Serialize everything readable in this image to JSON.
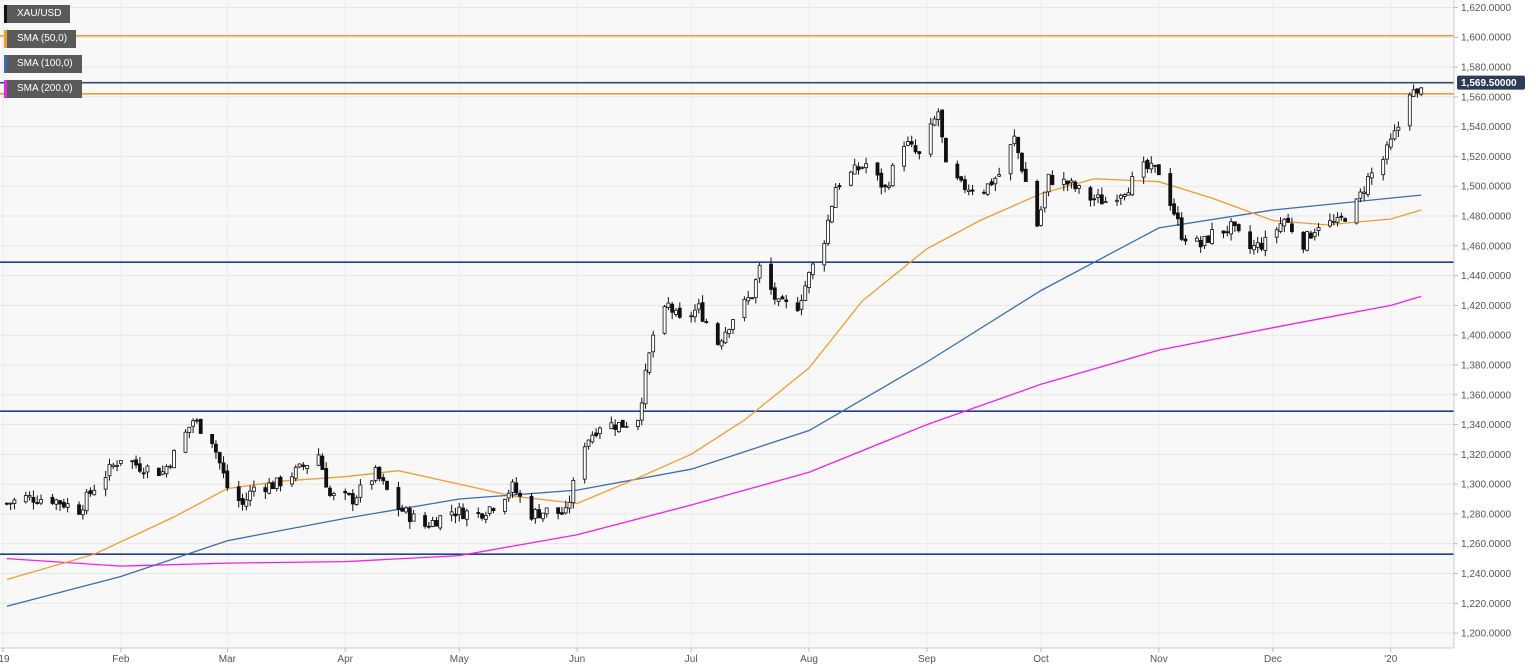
{
  "chart_data": {
    "type": "candlestick",
    "symbol": "XAU/USD",
    "legend": [
      {
        "label": "XAU/USD",
        "color": "#111111"
      },
      {
        "label": "SMA (50,0)",
        "color": "#f39c2f"
      },
      {
        "label": "SMA (100,0)",
        "color": "#3a6db5"
      },
      {
        "label": "SMA (200,0)",
        "color": "#ee22ee"
      }
    ],
    "last_price_label": "1,569.50000",
    "last_price": 1569.5,
    "ylim": [
      1190,
      1625
    ],
    "y_ticks": [
      1200,
      1220,
      1240,
      1260,
      1280,
      1300,
      1320,
      1340,
      1360,
      1380,
      1400,
      1420,
      1440,
      1460,
      1480,
      1500,
      1520,
      1540,
      1560,
      1580,
      1600,
      1620
    ],
    "y_tick_labels": [
      "1,200.0000",
      "1,220.0000",
      "1,240.0000",
      "1,260.0000",
      "1,280.0000",
      "1,300.0000",
      "1,320.0000",
      "1,340.0000",
      "1,360.0000",
      "1,380.0000",
      "1,400.0000",
      "1,420.0000",
      "1,440.0000",
      "1,460.0000",
      "1,480.0000",
      "1,500.0000",
      "1,520.0000",
      "1,540.0000",
      "1,560.0000",
      "1,580.0000",
      "1,600.0000",
      "1,620.0000"
    ],
    "x_range": [
      "2019-01-01",
      "2020-01-10"
    ],
    "x_ticks": [
      {
        "date": "2019-01-01",
        "label": "'19"
      },
      {
        "date": "2019-02-01",
        "label": "Feb"
      },
      {
        "date": "2019-03-01",
        "label": "Mar"
      },
      {
        "date": "2019-04-01",
        "label": "Apr"
      },
      {
        "date": "2019-05-01",
        "label": "May"
      },
      {
        "date": "2019-06-01",
        "label": "Jun"
      },
      {
        "date": "2019-07-01",
        "label": "Jul"
      },
      {
        "date": "2019-08-01",
        "label": "Aug"
      },
      {
        "date": "2019-09-01",
        "label": "Sep"
      },
      {
        "date": "2019-10-01",
        "label": "Oct"
      },
      {
        "date": "2019-11-01",
        "label": "Nov"
      },
      {
        "date": "2019-12-01",
        "label": "Dec"
      },
      {
        "date": "2020-01-01",
        "label": "'20"
      }
    ],
    "horizontal_levels": [
      {
        "value": 1601,
        "color": "#f39c2f"
      },
      {
        "value": 1562,
        "color": "#f39c2f"
      },
      {
        "value": 1569.5,
        "color": "#3a4a6a"
      },
      {
        "value": 1449,
        "color": "#1f3f8f"
      },
      {
        "value": 1349,
        "color": "#1f3f8f"
      },
      {
        "value": 1253,
        "color": "#1f3f8f"
      }
    ],
    "closes": [
      [
        "2019-01-02",
        1287
      ],
      [
        "2019-01-07",
        1291
      ],
      [
        "2019-01-14",
        1290
      ],
      [
        "2019-01-21",
        1283
      ],
      [
        "2019-01-25",
        1298
      ],
      [
        "2019-02-01",
        1318
      ],
      [
        "2019-02-06",
        1312
      ],
      [
        "2019-02-12",
        1308
      ],
      [
        "2019-02-15",
        1320
      ],
      [
        "2019-02-20",
        1343
      ],
      [
        "2019-02-25",
        1330
      ],
      [
        "2019-03-01",
        1298
      ],
      [
        "2019-03-05",
        1286
      ],
      [
        "2019-03-08",
        1298
      ],
      [
        "2019-03-14",
        1300
      ],
      [
        "2019-03-20",
        1310
      ],
      [
        "2019-03-25",
        1320
      ],
      [
        "2019-03-28",
        1292
      ],
      [
        "2019-04-03",
        1290
      ],
      [
        "2019-04-09",
        1307
      ],
      [
        "2019-04-15",
        1284
      ],
      [
        "2019-04-22",
        1272
      ],
      [
        "2019-04-29",
        1282
      ],
      [
        "2019-05-06",
        1280
      ],
      [
        "2019-05-10",
        1286
      ],
      [
        "2019-05-15",
        1298
      ],
      [
        "2019-05-20",
        1280
      ],
      [
        "2019-05-24",
        1282
      ],
      [
        "2019-05-29",
        1280
      ],
      [
        "2019-06-03",
        1328
      ],
      [
        "2019-06-07",
        1340
      ],
      [
        "2019-06-13",
        1340
      ],
      [
        "2019-06-17",
        1345
      ],
      [
        "2019-06-21",
        1400
      ],
      [
        "2019-06-25",
        1420
      ],
      [
        "2019-06-28",
        1409
      ],
      [
        "2019-07-03",
        1418
      ],
      [
        "2019-07-08",
        1395
      ],
      [
        "2019-07-12",
        1412
      ],
      [
        "2019-07-17",
        1427
      ],
      [
        "2019-07-19",
        1445
      ],
      [
        "2019-07-24",
        1420
      ],
      [
        "2019-07-29",
        1420
      ],
      [
        "2019-08-01",
        1440
      ],
      [
        "2019-08-05",
        1465
      ],
      [
        "2019-08-08",
        1500
      ],
      [
        "2019-08-13",
        1510
      ],
      [
        "2019-08-16",
        1515
      ],
      [
        "2019-08-21",
        1498
      ],
      [
        "2019-08-26",
        1530
      ],
      [
        "2019-08-30",
        1520
      ],
      [
        "2019-09-04",
        1550
      ],
      [
        "2019-09-06",
        1512
      ],
      [
        "2019-09-10",
        1500
      ],
      [
        "2019-09-16",
        1498
      ],
      [
        "2019-09-20",
        1508
      ],
      [
        "2019-09-24",
        1532
      ],
      [
        "2019-09-30",
        1474
      ],
      [
        "2019-10-03",
        1505
      ],
      [
        "2019-10-08",
        1502
      ],
      [
        "2019-10-14",
        1492
      ],
      [
        "2019-10-18",
        1490
      ],
      [
        "2019-10-24",
        1500
      ],
      [
        "2019-10-28",
        1512
      ],
      [
        "2019-11-01",
        1510
      ],
      [
        "2019-11-04",
        1490
      ],
      [
        "2019-11-07",
        1468
      ],
      [
        "2019-11-12",
        1460
      ],
      [
        "2019-11-15",
        1468
      ],
      [
        "2019-11-20",
        1472
      ],
      [
        "2019-11-25",
        1458
      ],
      [
        "2019-11-29",
        1462
      ],
      [
        "2019-12-04",
        1478
      ],
      [
        "2019-12-09",
        1462
      ],
      [
        "2019-12-13",
        1475
      ],
      [
        "2019-12-18",
        1475
      ],
      [
        "2019-12-23",
        1488
      ],
      [
        "2019-12-26",
        1505
      ],
      [
        "2019-12-30",
        1518
      ],
      [
        "2020-01-03",
        1540
      ],
      [
        "2020-01-06",
        1565
      ],
      [
        "2020-01-08",
        1560
      ],
      [
        "2020-01-09",
        1569.5
      ]
    ],
    "sma_50": [
      [
        "2019-01-02",
        1236
      ],
      [
        "2019-01-25",
        1253
      ],
      [
        "2019-02-15",
        1278
      ],
      [
        "2019-03-01",
        1297
      ],
      [
        "2019-03-15",
        1302
      ],
      [
        "2019-04-01",
        1305
      ],
      [
        "2019-04-15",
        1309
      ],
      [
        "2019-05-01",
        1300
      ],
      [
        "2019-05-15",
        1292
      ],
      [
        "2019-06-01",
        1287
      ],
      [
        "2019-06-15",
        1302
      ],
      [
        "2019-07-01",
        1320
      ],
      [
        "2019-07-15",
        1343
      ],
      [
        "2019-08-01",
        1378
      ],
      [
        "2019-08-15",
        1423
      ],
      [
        "2019-09-01",
        1458
      ],
      [
        "2019-09-15",
        1477
      ],
      [
        "2019-10-01",
        1495
      ],
      [
        "2019-10-15",
        1505
      ],
      [
        "2019-11-01",
        1503
      ],
      [
        "2019-11-15",
        1492
      ],
      [
        "2019-12-01",
        1477
      ],
      [
        "2019-12-15",
        1474
      ],
      [
        "2020-01-01",
        1478
      ],
      [
        "2020-01-09",
        1484
      ]
    ],
    "sma_100": [
      [
        "2019-01-02",
        1218
      ],
      [
        "2019-02-01",
        1238
      ],
      [
        "2019-03-01",
        1262
      ],
      [
        "2019-04-01",
        1277
      ],
      [
        "2019-05-01",
        1290
      ],
      [
        "2019-06-01",
        1296
      ],
      [
        "2019-07-01",
        1310
      ],
      [
        "2019-08-01",
        1336
      ],
      [
        "2019-09-01",
        1382
      ],
      [
        "2019-10-01",
        1430
      ],
      [
        "2019-11-01",
        1472
      ],
      [
        "2019-12-01",
        1484
      ],
      [
        "2020-01-01",
        1492
      ],
      [
        "2020-01-09",
        1494
      ]
    ],
    "sma_200": [
      [
        "2019-01-02",
        1250
      ],
      [
        "2019-02-01",
        1245
      ],
      [
        "2019-03-01",
        1247
      ],
      [
        "2019-04-01",
        1248
      ],
      [
        "2019-05-01",
        1252
      ],
      [
        "2019-06-01",
        1266
      ],
      [
        "2019-07-01",
        1286
      ],
      [
        "2019-08-01",
        1308
      ],
      [
        "2019-09-01",
        1340
      ],
      [
        "2019-10-01",
        1367
      ],
      [
        "2019-11-01",
        1390
      ],
      [
        "2019-12-01",
        1405
      ],
      [
        "2020-01-01",
        1420
      ],
      [
        "2020-01-09",
        1426
      ]
    ]
  }
}
